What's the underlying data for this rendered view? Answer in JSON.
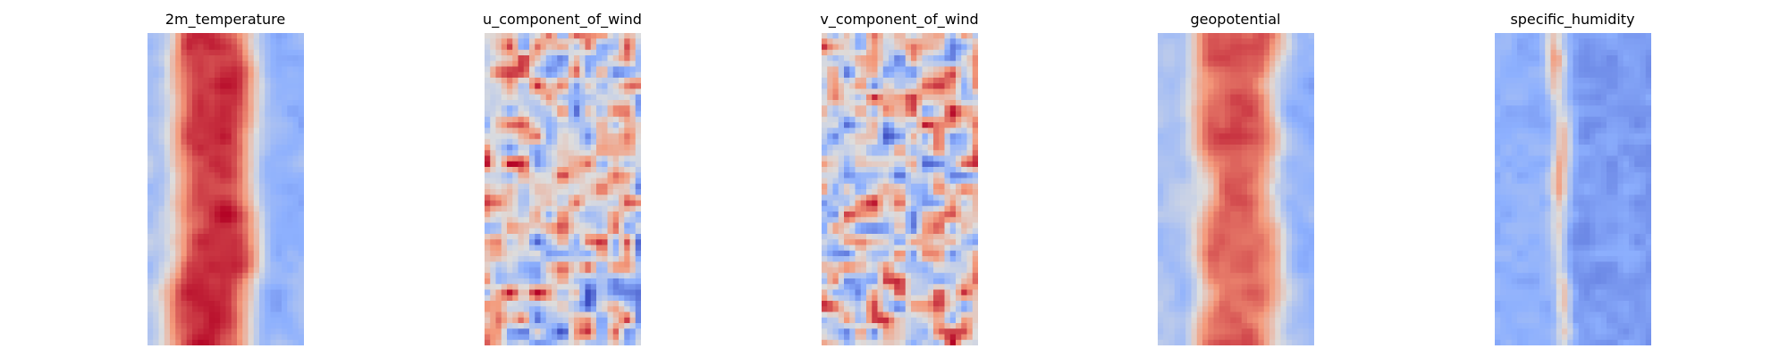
{
  "chart_data": [
    {
      "type": "heatmap",
      "title": "2m_temperature",
      "colormap": "coolwarm",
      "pattern": "warm_band",
      "band": {
        "center": 0.42,
        "width": 0.52,
        "strength": 1.0
      },
      "grid": false,
      "axes": "off"
    },
    {
      "type": "heatmap",
      "title": "u_component_of_wind",
      "colormap": "coolwarm",
      "pattern": "mixed_blobs",
      "grid": false,
      "axes": "off"
    },
    {
      "type": "heatmap",
      "title": "v_component_of_wind",
      "colormap": "coolwarm",
      "pattern": "mixed_blobs",
      "grid": false,
      "axes": "off"
    },
    {
      "type": "heatmap",
      "title": "geopotential",
      "colormap": "coolwarm",
      "pattern": "warm_band",
      "band": {
        "center": 0.52,
        "width": 0.55,
        "strength": 0.85
      },
      "grid": false,
      "axes": "off"
    },
    {
      "type": "heatmap",
      "title": "specific_humidity",
      "colormap": "coolwarm",
      "pattern": "cold_with_ridge",
      "band": {
        "center": 0.42,
        "width": 0.12,
        "strength": 1.0
      },
      "grid": false,
      "axes": "off"
    }
  ]
}
